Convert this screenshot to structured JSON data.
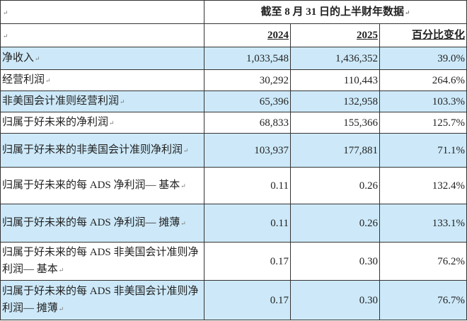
{
  "table": {
    "period_header": "截至 8 月 31 日的上半财年数据",
    "columns": [
      "2024",
      "2025",
      "百分比变化"
    ],
    "paragraph_mark": "↵",
    "shade_color": "#cde9f9",
    "rows": [
      {
        "label": "净收入",
        "v2024": "1,033,548",
        "v2025": "1,436,352",
        "change": "39.0%"
      },
      {
        "label": "经营利润",
        "v2024": "30,292",
        "v2025": "110,443",
        "change": "264.6%"
      },
      {
        "label": "非美国会计准则经营利润",
        "v2024": "65,396",
        "v2025": "132,958",
        "change": "103.3%"
      },
      {
        "label": "归属于好未来的净利润",
        "v2024": "68,833",
        "v2025": "155,366",
        "change": "125.7%"
      },
      {
        "label": "归属于好未来的非美国会计准则净利润",
        "v2024": "103,937",
        "v2025": "177,881",
        "change": "71.1%"
      },
      {
        "label": "归属于好未来的每 ADS 净利润— 基本",
        "v2024": "0.11",
        "v2025": "0.26",
        "change": "132.4%"
      },
      {
        "label": "归属于好未来的每 ADS 净利润— 摊薄",
        "v2024": "0.11",
        "v2025": "0.26",
        "change": "133.1%"
      },
      {
        "label": "归属于好未来的每 ADS 非美国会计准则净利润— 基本",
        "v2024": "0.17",
        "v2025": "0.30",
        "change": "76.2%"
      },
      {
        "label": "归属于好未来的每 ADS 非美国会计准则净利润— 摊薄",
        "v2024": "0.17",
        "v2025": "0.30",
        "change": "76.7%"
      }
    ]
  }
}
